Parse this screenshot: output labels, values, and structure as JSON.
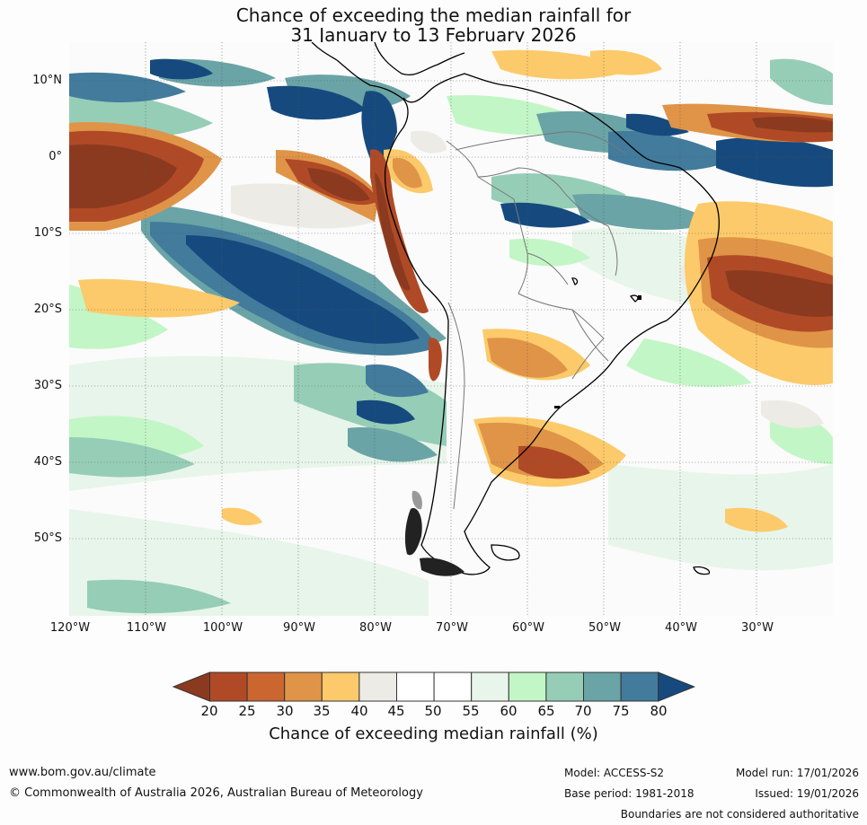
{
  "title": {
    "line1": "Chance of exceeding the median rainfall for",
    "line2": "31 January to 13 February 2026"
  },
  "axes": {
    "lat_labels": [
      "10°N",
      "0°",
      "10°S",
      "20°S",
      "30°S",
      "40°S",
      "50°S"
    ],
    "lon_labels": [
      "120°W",
      "110°W",
      "100°W",
      "90°W",
      "80°W",
      "70°W",
      "60°W",
      "50°W",
      "40°W",
      "30°W"
    ]
  },
  "legend": {
    "title": "Chance of exceeding median rainfall (%)",
    "ticks": [
      "20",
      "25",
      "30",
      "35",
      "40",
      "45",
      "50",
      "55",
      "60",
      "65",
      "70",
      "75",
      "80"
    ],
    "colors": [
      "#8b3a1f",
      "#b04a26",
      "#cb6631",
      "#e09448",
      "#fcca6a",
      "#ecebe6",
      "#ffffff",
      "#ffffff",
      "#e8f5ea",
      "#c3f6c6",
      "#96cdb6",
      "#6aa4a6",
      "#427b9c",
      "#164a7e"
    ]
  },
  "footer": {
    "website": "www.bom.gov.au/climate",
    "copyright": "© Commonwealth of Australia 2026, Australian Bureau of Meteorology",
    "model": "Model: ACCESS-S2",
    "base_period": "Base period: 1981-2018",
    "model_run": "Model run: 17/01/2026",
    "issued": "Issued: 19/01/2026",
    "disclaimer": "Boundaries are not considered authoritative"
  }
}
